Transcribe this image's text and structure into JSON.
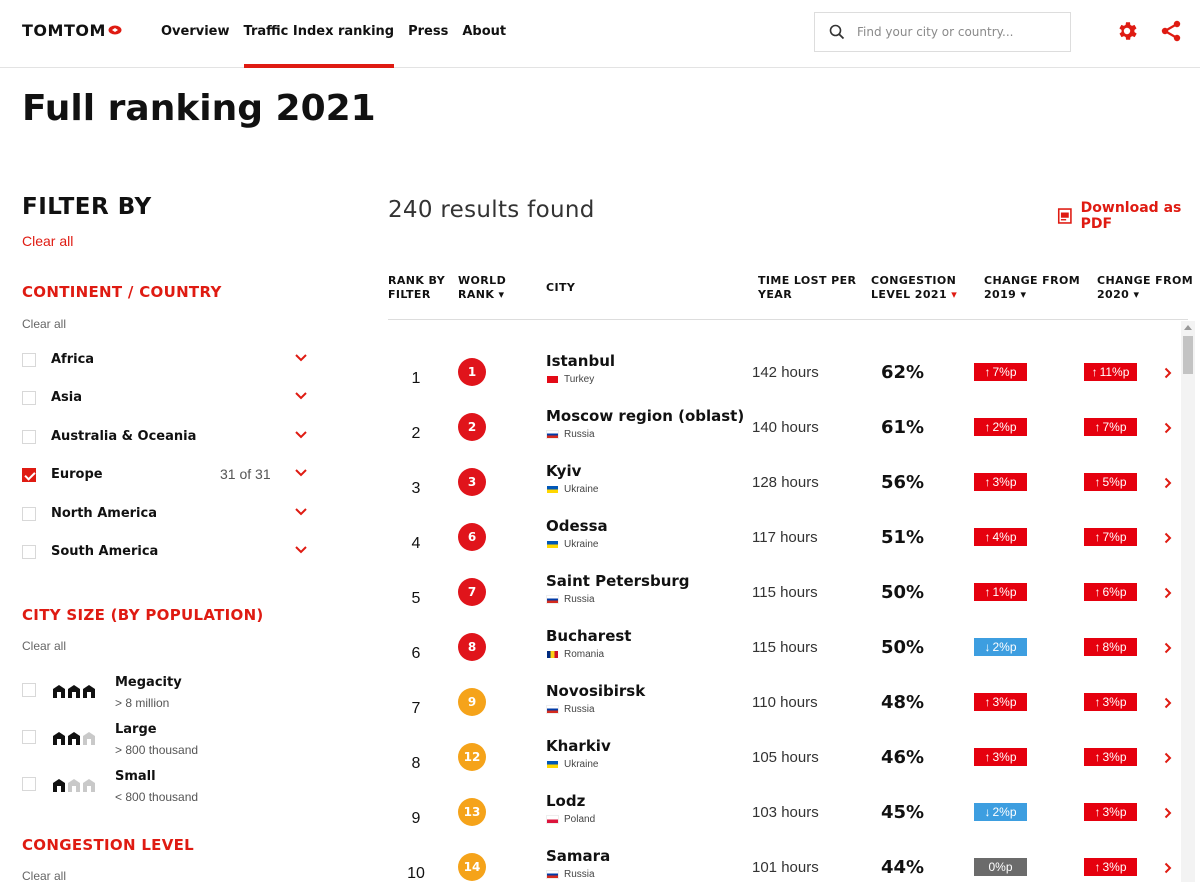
{
  "header": {
    "logo": "TOMTOM",
    "nav": [
      "Overview",
      "Traffic Index ranking",
      "Press",
      "About"
    ],
    "active_nav": "Traffic Index ranking",
    "search_placeholder": "Find your city or country..."
  },
  "page_title": "Full ranking 2021",
  "sidebar": {
    "filter_title": "FILTER BY",
    "clear_all": "Clear all",
    "continent": {
      "title": "CONTINENT / COUNTRY",
      "clear": "Clear all",
      "items": [
        {
          "label": "Africa",
          "checked": false,
          "count": ""
        },
        {
          "label": "Asia",
          "checked": false,
          "count": ""
        },
        {
          "label": "Australia & Oceania",
          "checked": false,
          "count": ""
        },
        {
          "label": "Europe",
          "checked": true,
          "count": "31 of 31"
        },
        {
          "label": "North America",
          "checked": false,
          "count": ""
        },
        {
          "label": "South America",
          "checked": false,
          "count": ""
        }
      ]
    },
    "city_size": {
      "title": "CITY SIZE (BY POPULATION)",
      "clear": "Clear all",
      "items": [
        {
          "label": "Megacity",
          "sub": "> 8 million",
          "filled": 3
        },
        {
          "label": "Large",
          "sub": "> 800 thousand",
          "filled": 2
        },
        {
          "label": "Small",
          "sub": "< 800 thousand",
          "filled": 1
        }
      ]
    },
    "congestion": {
      "title": "CONGESTION LEVEL",
      "clear": "Clear all"
    }
  },
  "main": {
    "results": "240 results found",
    "download": "Download as PDF",
    "columns": {
      "rank_filter": [
        "RANK BY",
        "FILTER"
      ],
      "world_rank": [
        "WORLD",
        "RANK ▾"
      ],
      "city": [
        "CITY"
      ],
      "time_lost": [
        "TIME LOST PER",
        "YEAR"
      ],
      "congestion": [
        "CONGESTION",
        "LEVEL 2021"
      ],
      "change_2019": [
        "CHANGE FROM",
        "2019 ▾"
      ],
      "change_2020": [
        "CHANGE FROM",
        "2020 ▾"
      ]
    },
    "rows": [
      {
        "rank": "1",
        "world_rank": "1",
        "city": "Istanbul",
        "country": "Turkey",
        "time": "142 hours",
        "congestion": "62%",
        "ch2019": "7%p",
        "ch2019_dir": "up",
        "ch2020": "11%p",
        "ch2020_dir": "up"
      },
      {
        "rank": "2",
        "world_rank": "2",
        "city": "Moscow region (oblast)",
        "country": "Russia",
        "time": "140 hours",
        "congestion": "61%",
        "ch2019": "2%p",
        "ch2019_dir": "up",
        "ch2020": "7%p",
        "ch2020_dir": "up"
      },
      {
        "rank": "3",
        "world_rank": "3",
        "city": "Kyiv",
        "country": "Ukraine",
        "time": "128 hours",
        "congestion": "56%",
        "ch2019": "3%p",
        "ch2019_dir": "up",
        "ch2020": "5%p",
        "ch2020_dir": "up"
      },
      {
        "rank": "4",
        "world_rank": "6",
        "city": "Odessa",
        "country": "Ukraine",
        "time": "117 hours",
        "congestion": "51%",
        "ch2019": "4%p",
        "ch2019_dir": "up",
        "ch2020": "7%p",
        "ch2020_dir": "up"
      },
      {
        "rank": "5",
        "world_rank": "7",
        "city": "Saint Petersburg",
        "country": "Russia",
        "time": "115 hours",
        "congestion": "50%",
        "ch2019": "1%p",
        "ch2019_dir": "up",
        "ch2020": "6%p",
        "ch2020_dir": "up"
      },
      {
        "rank": "6",
        "world_rank": "8",
        "city": "Bucharest",
        "country": "Romania",
        "time": "115 hours",
        "congestion": "50%",
        "ch2019": "2%p",
        "ch2019_dir": "down",
        "ch2020": "8%p",
        "ch2020_dir": "up"
      },
      {
        "rank": "7",
        "world_rank": "9",
        "city": "Novosibirsk",
        "country": "Russia",
        "time": "110 hours",
        "congestion": "48%",
        "ch2019": "3%p",
        "ch2019_dir": "up",
        "ch2020": "3%p",
        "ch2020_dir": "up"
      },
      {
        "rank": "8",
        "world_rank": "12",
        "city": "Kharkiv",
        "country": "Ukraine",
        "time": "105 hours",
        "congestion": "46%",
        "ch2019": "3%p",
        "ch2019_dir": "up",
        "ch2020": "3%p",
        "ch2020_dir": "up"
      },
      {
        "rank": "9",
        "world_rank": "13",
        "city": "Lodz",
        "country": "Poland",
        "time": "103 hours",
        "congestion": "45%",
        "ch2019": "2%p",
        "ch2019_dir": "down",
        "ch2020": "3%p",
        "ch2020_dir": "up"
      },
      {
        "rank": "10",
        "world_rank": "14",
        "city": "Samara",
        "country": "Russia",
        "time": "101 hours",
        "congestion": "44%",
        "ch2019": "0%p",
        "ch2019_dir": "none",
        "ch2020": "3%p",
        "ch2020_dir": "up"
      }
    ]
  },
  "colors": {
    "brand_red": "#df1b12",
    "badge_up": "#e5000e",
    "badge_down": "#3d9ee0",
    "badge_flat": "#6b6b6b",
    "rank_top": "#e0141b",
    "rank_mid": "#f5a31a"
  },
  "icons": {
    "search": "search-icon",
    "settings": "gear-icon",
    "share": "share-icon",
    "pdf": "pdf-icon",
    "chevron": "chevron-down-icon",
    "row_chevron": "chevron-right-icon"
  }
}
